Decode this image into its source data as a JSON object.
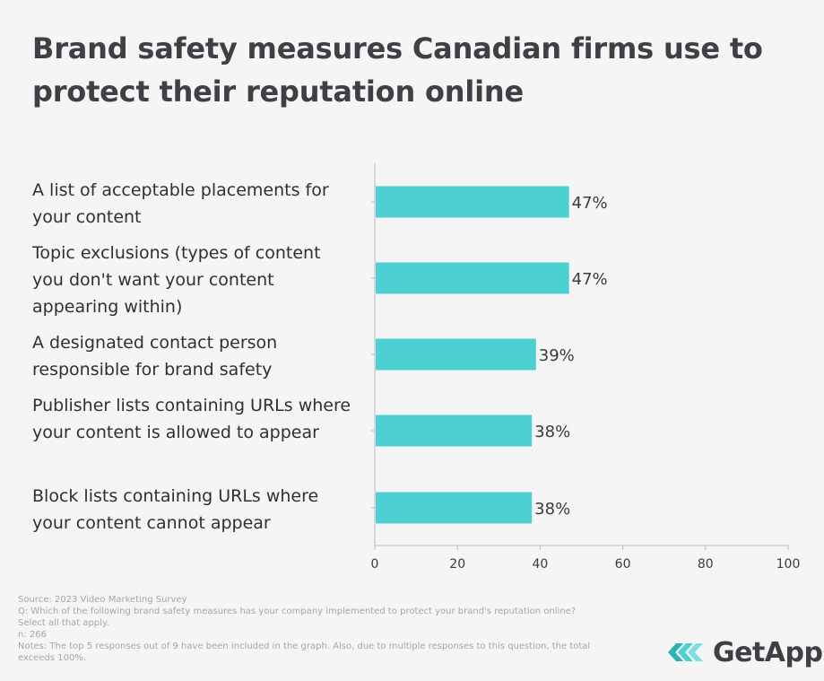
{
  "title": "Brand safety measures Canadian firms use to protect their reputation online",
  "chart_data": {
    "type": "bar",
    "orientation": "horizontal",
    "categories": [
      "A list of acceptable placements for your content",
      "Topic exclusions (types of content you don't want your content appearing within)",
      "A designated contact person responsible for brand safety",
      "Publisher lists containing URLs where your content is allowed to appear",
      "Block lists containing URLs where your content cannot appear"
    ],
    "values": [
      47,
      47,
      39,
      38,
      38
    ],
    "value_labels": [
      "47%",
      "47%",
      "39%",
      "38%",
      "38%"
    ],
    "xlim": [
      0,
      100
    ],
    "xticks": [
      0,
      20,
      40,
      60,
      80,
      100
    ],
    "bar_color": "#4dd0d2",
    "grid": false
  },
  "footer": {
    "source": "Source: 2023 Video Marketing Survey",
    "question": "Q: Which of the following brand safety measures has your company implemented to protect your brand's reputation online?",
    "instruction": "Select all that apply.",
    "n": "n: 266",
    "notes": "Notes: The top 5 responses out of 9 have been included in the graph. Also, due to multiple responses to this question, the total exceeds 100%."
  },
  "brand": {
    "name": "GetApp",
    "colors": [
      "#4dd0d2",
      "#2ab3b5"
    ]
  }
}
